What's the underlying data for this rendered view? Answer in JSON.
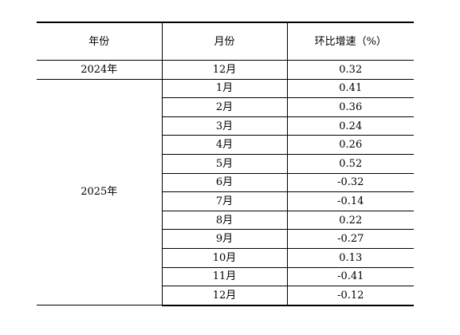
{
  "table": {
    "headers": [
      "年份",
      "月份",
      "环比增速（%）"
    ],
    "groups": [
      {
        "year": "2024年",
        "rows": [
          {
            "month": "12月",
            "value": "0.32"
          }
        ]
      },
      {
        "year": "2025年",
        "rows": [
          {
            "month": "1月",
            "value": "0.41"
          },
          {
            "month": "2月",
            "value": "0.36"
          },
          {
            "month": "3月",
            "value": "0.24"
          },
          {
            "month": "4月",
            "value": "0.26"
          },
          {
            "month": "5月",
            "value": "0.52"
          },
          {
            "month": "6月",
            "value": "-0.32"
          },
          {
            "month": "7月",
            "value": "-0.14"
          },
          {
            "month": "8月",
            "value": "0.22"
          },
          {
            "month": "9月",
            "value": "-0.27"
          },
          {
            "month": "10月",
            "value": "0.13"
          },
          {
            "month": "11月",
            "value": "-0.41"
          },
          {
            "month": "12月",
            "value": "-0.12"
          }
        ]
      }
    ]
  }
}
